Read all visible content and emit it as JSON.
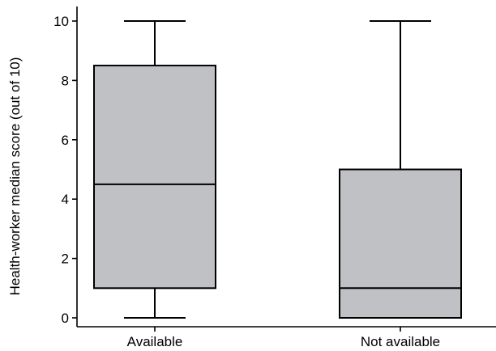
{
  "chart_data": {
    "type": "box",
    "title": "",
    "xlabel": "",
    "ylabel": "Health-worker median score (out of 10)",
    "ylim": [
      -0.3,
      10.2
    ],
    "yticks": [
      0,
      2,
      4,
      6,
      8,
      10
    ],
    "ytick_labels": [
      "0",
      "2",
      "4",
      "6",
      "8",
      "10"
    ],
    "categories": [
      "Available",
      "Not available"
    ],
    "boxes": [
      {
        "category": "Available",
        "min": 0,
        "q1": 1,
        "median": 4.5,
        "q3": 8.5,
        "max": 10
      },
      {
        "category": "Not available",
        "min": 0,
        "q1": 0,
        "median": 1,
        "q3": 5,
        "max": 10
      }
    ],
    "grid": false,
    "colors": {
      "box_fill": "#c0c1c5",
      "box_stroke": "#000000",
      "axis": "#000000"
    }
  }
}
